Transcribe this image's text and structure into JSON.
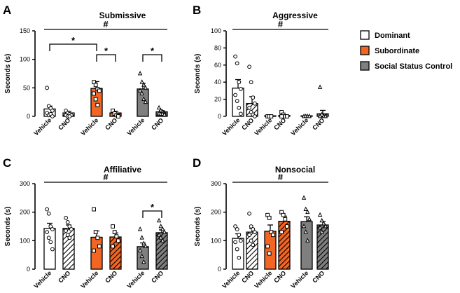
{
  "figure": {
    "legend": {
      "items": [
        {
          "label": "Dominant",
          "color": "#ffffff",
          "hatch": false
        },
        {
          "label": "Subordinate",
          "color": "#f26522",
          "hatch": false
        },
        {
          "label": "Social Status Control",
          "color": "#7f7f7f",
          "hatch": false
        }
      ]
    }
  },
  "chart_data": [
    {
      "panel": "A",
      "type": "bar",
      "title": "Submissive",
      "ylabel": "Seconds (s)",
      "ylim": [
        0,
        150
      ],
      "yticks": [
        0,
        50,
        100,
        150
      ],
      "categories": [
        "Vehicle",
        "CNO",
        "Vehicle",
        "CNO",
        "Vehicle",
        "CNO"
      ],
      "groups": [
        "Dominant",
        "Dominant",
        "Subordinate",
        "Subordinate",
        "Social Status Control",
        "Social Status Control"
      ],
      "hatched": [
        false,
        true,
        false,
        true,
        false,
        true
      ],
      "values": [
        13,
        6,
        49,
        6,
        48,
        8
      ],
      "errors": [
        5,
        3,
        12,
        3,
        10,
        2
      ],
      "points": [
        [
          50,
          18,
          14,
          10,
          6,
          2,
          4,
          0
        ],
        [
          10,
          6,
          4,
          2,
          2,
          0,
          0
        ],
        [
          60,
          55,
          48,
          45,
          40,
          30,
          20
        ],
        [
          10,
          5,
          2,
          0
        ],
        [
          75,
          60,
          55,
          50,
          45,
          40,
          30,
          25
        ],
        [
          15,
          10,
          8,
          6,
          5,
          4,
          4,
          3
        ]
      ],
      "significance": [
        {
          "label": "*",
          "from": 0,
          "to": 2
        },
        {
          "label": "*",
          "from": 2,
          "to": 3
        },
        {
          "label": "*",
          "from": 4,
          "to": 5
        },
        {
          "label": "#",
          "from": 0,
          "to": 5
        }
      ]
    },
    {
      "panel": "B",
      "type": "bar",
      "title": "Aggressive",
      "ylabel": "Seconds (s)",
      "ylim": [
        0,
        100
      ],
      "yticks": [
        0,
        20,
        40,
        60,
        80,
        100
      ],
      "categories": [
        "Vehicle",
        "CNO",
        "Vehicle",
        "CNO",
        "Vehicle",
        "CNO"
      ],
      "groups": [
        "Dominant",
        "Dominant",
        "Subordinate",
        "Subordinate",
        "Social Status Control",
        "Social Status Control"
      ],
      "hatched": [
        false,
        true,
        false,
        true,
        false,
        true
      ],
      "values": [
        33,
        15,
        0,
        1,
        0,
        3
      ],
      "errors": [
        10,
        8,
        0,
        1,
        0,
        4
      ],
      "points": [
        [
          70,
          62,
          40,
          32,
          25,
          18,
          10,
          3
        ],
        [
          58,
          40,
          22,
          15,
          10,
          5,
          2,
          0
        ],
        [
          0,
          0,
          0
        ],
        [
          5,
          2,
          0,
          0,
          0
        ],
        [
          0,
          0,
          0,
          0
        ],
        [
          34,
          2,
          0,
          0,
          0
        ]
      ],
      "significance": [
        {
          "label": "#",
          "from": 0,
          "to": 5
        }
      ]
    },
    {
      "panel": "C",
      "type": "bar",
      "title": "Affiliative",
      "ylabel": "Seconds (s)",
      "ylim": [
        0,
        300
      ],
      "yticks": [
        0,
        100,
        200,
        300
      ],
      "categories": [
        "Vehicle",
        "CNO",
        "Vehicle",
        "CNO",
        "Vehicle",
        "CNO"
      ],
      "groups": [
        "Dominant",
        "Dominant",
        "Subordinate",
        "Subordinate",
        "Social Status Control",
        "Social Status Control"
      ],
      "hatched": [
        false,
        true,
        false,
        true,
        false,
        true
      ],
      "values": [
        143,
        143,
        112,
        113,
        79,
        128
      ],
      "errors": [
        18,
        12,
        22,
        14,
        13,
        10
      ],
      "points": [
        [
          210,
          195,
          150,
          140,
          130,
          110,
          95,
          70
        ],
        [
          180,
          165,
          150,
          140,
          135,
          120,
          110
        ],
        [
          210,
          130,
          110,
          80,
          65
        ],
        [
          150,
          130,
          115,
          100,
          80
        ],
        [
          140,
          110,
          90,
          80,
          65,
          45,
          25
        ],
        [
          170,
          150,
          140,
          130,
          120,
          110,
          100
        ]
      ],
      "significance": [
        {
          "label": "*",
          "from": 4,
          "to": 5
        },
        {
          "label": "#",
          "from": 0,
          "to": 5
        }
      ]
    },
    {
      "panel": "D",
      "type": "bar",
      "title": "Nonsocial",
      "ylabel": "Seconds (s)",
      "ylim": [
        0,
        300
      ],
      "yticks": [
        0,
        100,
        200,
        300
      ],
      "categories": [
        "Vehicle",
        "CNO",
        "Vehicle",
        "CNO",
        "Vehicle",
        "CNO"
      ],
      "groups": [
        "Dominant",
        "Dominant",
        "Subordinate",
        "Subordinate",
        "Social Status Control",
        "Social Status Control"
      ],
      "hatched": [
        false,
        true,
        false,
        true,
        false,
        true
      ],
      "values": [
        108,
        130,
        133,
        168,
        167,
        155
      ],
      "errors": [
        16,
        13,
        22,
        18,
        17,
        12
      ],
      "points": [
        [
          150,
          140,
          120,
          100,
          95,
          70,
          40
        ],
        [
          195,
          150,
          140,
          130,
          120,
          100,
          85
        ],
        [
          190,
          180,
          130,
          120,
          80,
          55
        ],
        [
          200,
          190,
          175,
          150,
          130
        ],
        [
          250,
          210,
          200,
          175,
          150,
          130,
          100
        ],
        [
          190,
          170,
          160,
          150,
          145,
          130
        ]
      ],
      "significance": [
        {
          "label": "#",
          "from": 0,
          "to": 5
        }
      ]
    }
  ]
}
